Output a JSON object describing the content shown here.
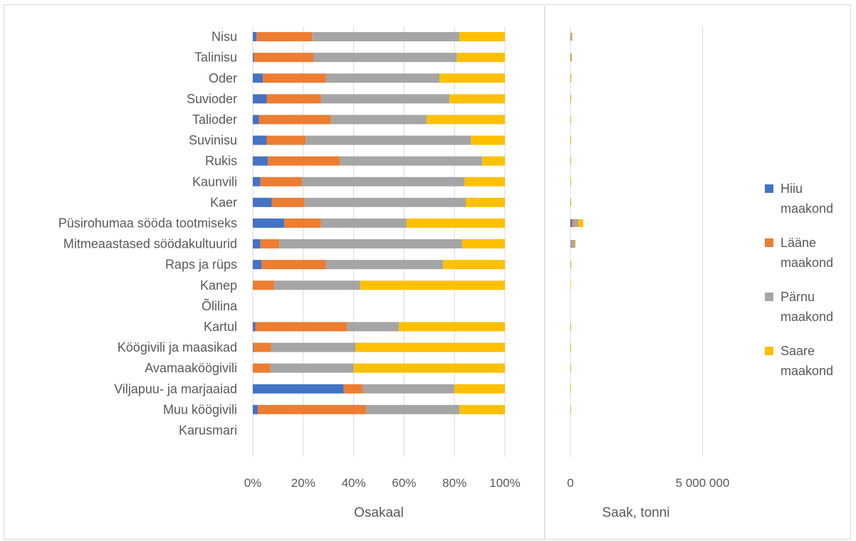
{
  "chart_data": [
    {
      "type": "bar",
      "orientation": "horizontal",
      "stacked": "percent",
      "title": "",
      "xlabel": "Osakaal",
      "ylabel": "",
      "xlim": [
        0,
        100
      ],
      "x_ticks": [
        "0%",
        "20%",
        "40%",
        "60%",
        "80%",
        "100%"
      ],
      "grid": true,
      "categories": [
        "Nisu",
        "Talinisu",
        "Oder",
        "Suvioder",
        "Talioder",
        "Suvinisu",
        "Rukis",
        "Kaunvili",
        "Kaer",
        "Püsirohumaa sööda tootmiseks",
        "Mitmeaastased söödakultuurid",
        "Raps ja rüps",
        "Kanep",
        "Õlilina",
        "Kartul",
        "Köögivili ja maasikad",
        "Avamaaköögivili",
        "Viljapuu- ja marjaaiad",
        "Muu köögivili",
        "Karusmari"
      ],
      "series": [
        {
          "name": "Hiiu maakond",
          "color": "#4472c4",
          "values": [
            1.5,
            0.5,
            4,
            5.5,
            2.5,
            5.5,
            6,
            3,
            7.5,
            12.5,
            3,
            3.5,
            0,
            0,
            1,
            0.3,
            0,
            36,
            2,
            0
          ]
        },
        {
          "name": "Lääne maakond",
          "color": "#ed7d31",
          "values": [
            22,
            23.5,
            25,
            21.5,
            28.5,
            15.5,
            28.5,
            16.5,
            13,
            14.5,
            7.5,
            25.5,
            8.5,
            0,
            36.5,
            7,
            7,
            7.5,
            43,
            0
          ]
        },
        {
          "name": "Pärnu maakond",
          "color": "#a5a5a5",
          "values": [
            58.5,
            57,
            45,
            51,
            38,
            65.5,
            56.5,
            64.5,
            64,
            34,
            72.5,
            46.5,
            34,
            0,
            20.5,
            33.5,
            33,
            36.5,
            37,
            0
          ]
        },
        {
          "name": "Saare maakond",
          "color": "#ffc000",
          "values": [
            18,
            19,
            26,
            22,
            31,
            13.5,
            9,
            16,
            15.5,
            39,
            17,
            24.5,
            57.5,
            0,
            42,
            59.2,
            60,
            20,
            18,
            0
          ]
        }
      ]
    },
    {
      "type": "bar",
      "orientation": "horizontal",
      "stacked": "absolute",
      "title": "",
      "xlabel": "Saak, tonni",
      "ylabel": "",
      "xlim": [
        0,
        10000000
      ],
      "x_ticks": [
        "0",
        "5 000 000"
      ],
      "grid": true,
      "categories": [
        "Nisu",
        "Talinisu",
        "Oder",
        "Suvioder",
        "Talioder",
        "Suvinisu",
        "Rukis",
        "Kaunvili",
        "Kaer",
        "Püsirohumaa sööda tootmiseks",
        "Mitmeaastased söödakultuurid",
        "Raps ja rüps",
        "Kanep",
        "Õlilina",
        "Kartul",
        "Köögivili ja maasikad",
        "Avamaaköögivili",
        "Viljapuu- ja marjaaiad",
        "Muu köögivili",
        "Karusmari"
      ],
      "series": [
        {
          "name": "Hiiu maakond",
          "color": "#4472c4",
          "values": [
            1000,
            500,
            1000,
            800,
            300,
            500,
            500,
            200,
            1200,
            60000,
            2000,
            700,
            0,
            0,
            100,
            100,
            50,
            150,
            30,
            0
          ]
        },
        {
          "name": "Lääne maakond",
          "color": "#ed7d31",
          "values": [
            14000,
            12000,
            6000,
            3500,
            3000,
            1500,
            2500,
            1200,
            2000,
            70000,
            15000,
            5000,
            10,
            0,
            3500,
            1500,
            1500,
            50,
            700,
            0
          ]
        },
        {
          "name": "Pärnu maakond",
          "color": "#a5a5a5",
          "values": [
            38000,
            29000,
            11000,
            8000,
            4000,
            6000,
            5000,
            4800,
            9800,
            165000,
            145000,
            9000,
            40,
            0,
            2000,
            7000,
            7000,
            200,
            600,
            0
          ]
        },
        {
          "name": "Saare maakond",
          "color": "#ffc000",
          "values": [
            12000,
            10000,
            6500,
            3500,
            3200,
            1200,
            800,
            1200,
            2400,
            190000,
            34000,
            4700,
            70,
            0,
            4100,
            12000,
            12500,
            100,
            300,
            0
          ]
        }
      ]
    }
  ],
  "legend": {
    "placement": "right",
    "items": [
      {
        "lines": [
          "Hiiu",
          "maakond"
        ],
        "color": "#4472c4"
      },
      {
        "lines": [
          "Lääne",
          "maakond"
        ],
        "color": "#ed7d31"
      },
      {
        "lines": [
          "Pärnu",
          "maakond"
        ],
        "color": "#a5a5a5"
      },
      {
        "lines": [
          "Saare",
          "maakond"
        ],
        "color": "#ffc000"
      }
    ]
  }
}
